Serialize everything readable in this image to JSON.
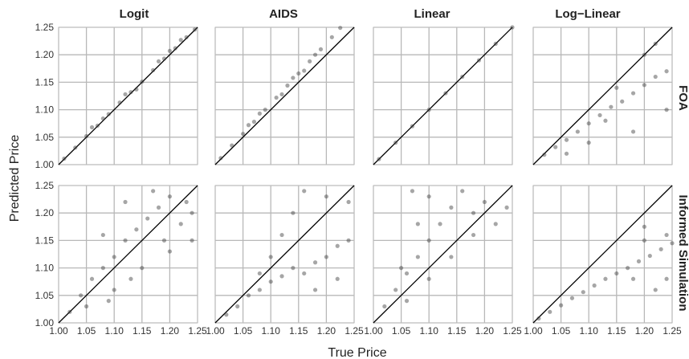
{
  "chart_data": {
    "type": "scatter",
    "x_label": "True Price",
    "y_label": "Predicted Price",
    "xlim": [
      1.0,
      1.25
    ],
    "ylim": [
      1.0,
      1.25
    ],
    "x_ticks": [
      "1.00",
      "1.05",
      "1.10",
      "1.15",
      "1.20",
      "1.25"
    ],
    "y_ticks": [
      "1.00",
      "1.05",
      "1.10",
      "1.15",
      "1.20",
      "1.25"
    ],
    "columns": [
      "Logit",
      "AIDS",
      "Linear",
      "Log−Linear"
    ],
    "rows": [
      "FOA",
      "Informed Simulation"
    ],
    "reference_line": "y = x",
    "grid": true,
    "point_color": "#3a3a3a",
    "panels": [
      {
        "row": "FOA",
        "column": "Logit",
        "points": [
          [
            1.01,
            1.011
          ],
          [
            1.03,
            1.031
          ],
          [
            1.05,
            1.052
          ],
          [
            1.07,
            1.071
          ],
          [
            1.09,
            1.092
          ],
          [
            1.11,
            1.113
          ],
          [
            1.13,
            1.132
          ],
          [
            1.15,
            1.151
          ],
          [
            1.17,
            1.172
          ],
          [
            1.19,
            1.193
          ],
          [
            1.21,
            1.212
          ],
          [
            1.23,
            1.232
          ],
          [
            1.245,
            1.246
          ],
          [
            1.06,
            1.068
          ],
          [
            1.12,
            1.128
          ],
          [
            1.18,
            1.188
          ],
          [
            1.22,
            1.227
          ],
          [
            1.14,
            1.137
          ],
          [
            1.08,
            1.084
          ],
          [
            1.2,
            1.207
          ]
        ]
      },
      {
        "row": "FOA",
        "column": "AIDS",
        "points": [
          [
            1.01,
            1.012
          ],
          [
            1.03,
            1.035
          ],
          [
            1.05,
            1.056
          ],
          [
            1.07,
            1.078
          ],
          [
            1.09,
            1.1
          ],
          [
            1.11,
            1.122
          ],
          [
            1.13,
            1.144
          ],
          [
            1.15,
            1.166
          ],
          [
            1.17,
            1.188
          ],
          [
            1.19,
            1.21
          ],
          [
            1.21,
            1.232
          ],
          [
            1.225,
            1.249
          ],
          [
            1.08,
            1.093
          ],
          [
            1.14,
            1.158
          ],
          [
            1.18,
            1.2
          ],
          [
            1.12,
            1.128
          ],
          [
            1.16,
            1.171
          ],
          [
            1.06,
            1.072
          ]
        ]
      },
      {
        "row": "FOA",
        "column": "Linear",
        "points": [
          [
            1.01,
            1.01
          ],
          [
            1.04,
            1.04
          ],
          [
            1.07,
            1.07
          ],
          [
            1.1,
            1.1
          ],
          [
            1.13,
            1.13
          ],
          [
            1.16,
            1.16
          ],
          [
            1.19,
            1.19
          ],
          [
            1.22,
            1.22
          ],
          [
            1.25,
            1.25
          ]
        ]
      },
      {
        "row": "FOA",
        "column": "Log−Linear",
        "points": [
          [
            1.02,
            1.018
          ],
          [
            1.04,
            1.032
          ],
          [
            1.06,
            1.045
          ],
          [
            1.08,
            1.06
          ],
          [
            1.1,
            1.075
          ],
          [
            1.12,
            1.09
          ],
          [
            1.14,
            1.105
          ],
          [
            1.16,
            1.115
          ],
          [
            1.18,
            1.13
          ],
          [
            1.2,
            1.145
          ],
          [
            1.22,
            1.16
          ],
          [
            1.24,
            1.17
          ],
          [
            1.15,
            1.14
          ],
          [
            1.2,
            1.2
          ],
          [
            1.22,
            1.22
          ],
          [
            1.1,
            1.04
          ],
          [
            1.18,
            1.06
          ],
          [
            1.24,
            1.1
          ],
          [
            1.06,
            1.02
          ],
          [
            1.13,
            1.08
          ]
        ]
      },
      {
        "row": "Informed Simulation",
        "column": "Logit",
        "points": [
          [
            1.02,
            1.02
          ],
          [
            1.04,
            1.05
          ],
          [
            1.06,
            1.08
          ],
          [
            1.08,
            1.1
          ],
          [
            1.1,
            1.12
          ],
          [
            1.12,
            1.15
          ],
          [
            1.14,
            1.17
          ],
          [
            1.16,
            1.19
          ],
          [
            1.18,
            1.21
          ],
          [
            1.2,
            1.23
          ],
          [
            1.22,
            1.18
          ],
          [
            1.24,
            1.2
          ],
          [
            1.1,
            1.06
          ],
          [
            1.15,
            1.1
          ],
          [
            1.2,
            1.13
          ],
          [
            1.24,
            1.15
          ],
          [
            1.05,
            1.03
          ],
          [
            1.09,
            1.04
          ],
          [
            1.13,
            1.08
          ],
          [
            1.17,
            1.24
          ],
          [
            1.12,
            1.22
          ],
          [
            1.08,
            1.16
          ],
          [
            1.19,
            1.15
          ],
          [
            1.23,
            1.22
          ]
        ]
      },
      {
        "row": "Informed Simulation",
        "column": "AIDS",
        "points": [
          [
            1.02,
            1.015
          ],
          [
            1.04,
            1.03
          ],
          [
            1.06,
            1.05
          ],
          [
            1.08,
            1.06
          ],
          [
            1.1,
            1.075
          ],
          [
            1.12,
            1.085
          ],
          [
            1.14,
            1.1
          ],
          [
            1.16,
            1.09
          ],
          [
            1.18,
            1.11
          ],
          [
            1.2,
            1.12
          ],
          [
            1.22,
            1.14
          ],
          [
            1.24,
            1.15
          ],
          [
            1.1,
            1.12
          ],
          [
            1.14,
            1.2
          ],
          [
            1.16,
            1.24
          ],
          [
            1.2,
            1.23
          ],
          [
            1.24,
            1.22
          ],
          [
            1.08,
            1.09
          ],
          [
            1.12,
            1.16
          ],
          [
            1.18,
            1.06
          ],
          [
            1.22,
            1.08
          ]
        ]
      },
      {
        "row": "Informed Simulation",
        "column": "Linear",
        "points": [
          [
            1.02,
            1.03
          ],
          [
            1.04,
            1.06
          ],
          [
            1.06,
            1.09
          ],
          [
            1.08,
            1.12
          ],
          [
            1.1,
            1.15
          ],
          [
            1.12,
            1.18
          ],
          [
            1.14,
            1.21
          ],
          [
            1.16,
            1.24
          ],
          [
            1.18,
            1.2
          ],
          [
            1.2,
            1.22
          ],
          [
            1.22,
            1.18
          ],
          [
            1.24,
            1.21
          ],
          [
            1.05,
            1.1
          ],
          [
            1.08,
            1.18
          ],
          [
            1.1,
            1.23
          ],
          [
            1.06,
            1.04
          ],
          [
            1.1,
            1.08
          ],
          [
            1.14,
            1.12
          ],
          [
            1.18,
            1.16
          ],
          [
            1.07,
            1.24
          ]
        ]
      },
      {
        "row": "Informed Simulation",
        "column": "Log−Linear",
        "points": [
          [
            1.01,
            1.008
          ],
          [
            1.03,
            1.02
          ],
          [
            1.05,
            1.032
          ],
          [
            1.07,
            1.045
          ],
          [
            1.09,
            1.056
          ],
          [
            1.11,
            1.068
          ],
          [
            1.13,
            1.08
          ],
          [
            1.15,
            1.09
          ],
          [
            1.17,
            1.1
          ],
          [
            1.19,
            1.112
          ],
          [
            1.21,
            1.122
          ],
          [
            1.23,
            1.134
          ],
          [
            1.25,
            1.145
          ],
          [
            1.2,
            1.15
          ],
          [
            1.24,
            1.16
          ],
          [
            1.22,
            1.06
          ],
          [
            1.18,
            1.08
          ],
          [
            1.24,
            1.08
          ],
          [
            1.2,
            1.175
          ]
        ]
      }
    ]
  }
}
